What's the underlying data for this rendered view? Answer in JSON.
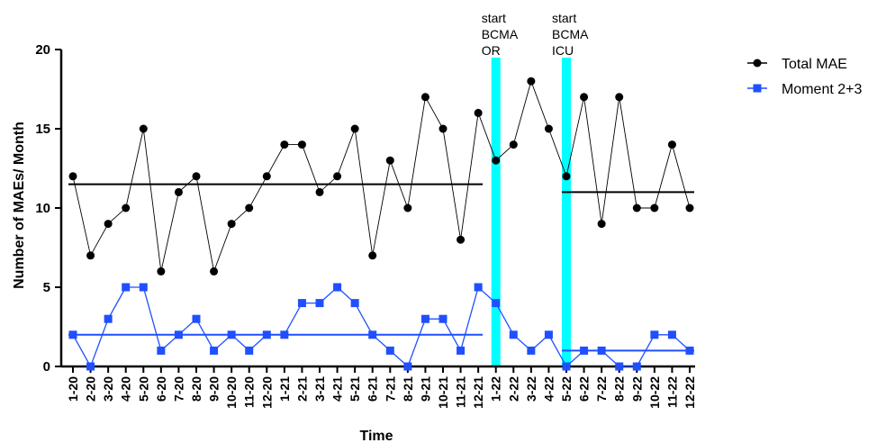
{
  "chart_data": {
    "type": "line",
    "title": "",
    "xlabel": "Time",
    "ylabel": "Number of MAEs/ Month",
    "ylim": [
      0,
      20
    ],
    "yticks": [
      0,
      5,
      10,
      15,
      20
    ],
    "grid": false,
    "legend_position": "top-right",
    "categories": [
      "1-20",
      "2-20",
      "3-20",
      "4-20",
      "5-20",
      "6-20",
      "7-20",
      "8-20",
      "9-20",
      "10-20",
      "11-20",
      "12-20",
      "1-21",
      "2-21",
      "3-21",
      "4-21",
      "5-21",
      "6-21",
      "7-21",
      "8-21",
      "9-21",
      "10-21",
      "11-21",
      "12-21",
      "1-22",
      "2-22",
      "3-22",
      "4-22",
      "5-22",
      "6-22",
      "7-22",
      "8-22",
      "9-22",
      "10-22",
      "11-22",
      "12-22"
    ],
    "series": [
      {
        "name": "Total MAE",
        "color": "#000000",
        "marker": "circle",
        "values": [
          12,
          7,
          9,
          10,
          15,
          6,
          11,
          12,
          6,
          9,
          10,
          12,
          14,
          14,
          11,
          12,
          15,
          7,
          13,
          10,
          17,
          15,
          8,
          16,
          13,
          14,
          18,
          15,
          12,
          17,
          9,
          17,
          10,
          10,
          14,
          10
        ]
      },
      {
        "name": "Moment 2+3",
        "color": "#1f4fff",
        "marker": "square",
        "values": [
          2,
          0,
          3,
          5,
          5,
          1,
          2,
          3,
          1,
          2,
          1,
          2,
          2,
          4,
          4,
          5,
          4,
          2,
          1,
          0,
          3,
          3,
          1,
          5,
          4,
          2,
          1,
          2,
          0,
          1,
          1,
          0,
          0,
          2,
          2,
          1
        ]
      }
    ],
    "mean_lines": [
      {
        "series": "Total MAE",
        "from": "1-20",
        "to": "12-21",
        "value": 11.5
      },
      {
        "series": "Moment 2+3",
        "from": "1-20",
        "to": "12-21",
        "value": 2
      },
      {
        "series": "Total MAE",
        "from": "5-22",
        "to": "12-22",
        "value": 11
      },
      {
        "series": "Moment 2+3",
        "from": "5-22",
        "to": "12-22",
        "value": 1
      }
    ],
    "markers": [
      {
        "at": "1-22",
        "lines": [
          "start",
          "BCMA",
          "OR"
        ],
        "color": "#00ffff"
      },
      {
        "at": "5-22",
        "lines": [
          "start",
          "BCMA",
          "ICU"
        ],
        "color": "#00ffff"
      }
    ]
  }
}
